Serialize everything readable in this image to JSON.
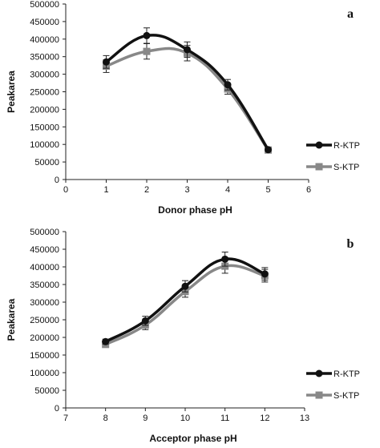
{
  "colors": {
    "r_ktp": "#111111",
    "s_ktp": "#888888"
  },
  "chart_data": [
    {
      "type": "line",
      "panel_label": "a",
      "xlabel": "Donor phase pH",
      "ylabel": "Peakarea",
      "xlim": [
        0,
        6
      ],
      "ylim": [
        0,
        500000
      ],
      "xticks": [
        "0",
        "1",
        "2",
        "3",
        "4",
        "5",
        "6"
      ],
      "yticks": [
        "0",
        "50000",
        "100000",
        "150000",
        "200000",
        "250000",
        "300000",
        "350000",
        "400000",
        "450000",
        "500000"
      ],
      "x": [
        1,
        2,
        3,
        4,
        5
      ],
      "series": [
        {
          "name": "R-KTP",
          "values": [
            335000,
            410000,
            370000,
            270000,
            85000
          ],
          "errors": [
            18000,
            22000,
            22000,
            15000,
            4000
          ],
          "marker": "circle",
          "color": "#111111"
        },
        {
          "name": "S-KTP",
          "values": [
            323000,
            365000,
            360000,
            258000,
            84000
          ],
          "errors": [
            18000,
            22000,
            22000,
            15000,
            4000
          ],
          "marker": "square",
          "color": "#888888"
        }
      ],
      "legend": "right"
    },
    {
      "type": "line",
      "panel_label": "b",
      "xlabel": "Acceptor phase pH",
      "ylabel": "Peakarea",
      "xlim": [
        7,
        13
      ],
      "ylim": [
        0,
        500000
      ],
      "xticks": [
        "7",
        "8",
        "9",
        "10",
        "11",
        "12",
        "13"
      ],
      "yticks": [
        "0",
        "50000",
        "100000",
        "150000",
        "200000",
        "250000",
        "300000",
        "350000",
        "400000",
        "450000",
        "500000"
      ],
      "x": [
        8,
        9,
        10,
        11,
        12
      ],
      "series": [
        {
          "name": "R-KTP",
          "values": [
            188000,
            247000,
            345000,
            422000,
            380000
          ],
          "errors": [
            7000,
            13000,
            16000,
            20000,
            18000
          ],
          "marker": "circle",
          "color": "#111111"
        },
        {
          "name": "S-KTP",
          "values": [
            180000,
            235000,
            330000,
            402000,
            375000
          ],
          "errors": [
            7000,
            13000,
            16000,
            20000,
            18000
          ],
          "marker": "square",
          "color": "#888888"
        }
      ],
      "legend": "right"
    }
  ]
}
